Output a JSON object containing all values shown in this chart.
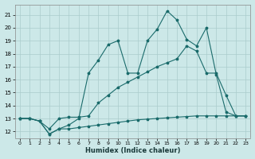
{
  "xlabel": "Humidex (Indice chaleur)",
  "background_color": "#cce8e8",
  "grid_color": "#aacccc",
  "line_color": "#1a6b6b",
  "xlim": [
    -0.5,
    23.5
  ],
  "ylim": [
    11.5,
    21.8
  ],
  "yticks": [
    12,
    13,
    14,
    15,
    16,
    17,
    18,
    19,
    20,
    21
  ],
  "xticks": [
    0,
    1,
    2,
    3,
    4,
    5,
    6,
    7,
    8,
    9,
    10,
    11,
    12,
    13,
    14,
    15,
    16,
    17,
    18,
    19,
    20,
    21,
    22,
    23
  ],
  "series1_y": [
    13.0,
    13.0,
    12.8,
    11.8,
    12.2,
    12.5,
    13.0,
    16.5,
    17.5,
    18.7,
    19.0,
    16.5,
    16.5,
    19.0,
    19.9,
    21.3,
    20.6,
    19.1,
    18.6,
    20.0,
    16.4,
    13.5,
    13.2,
    13.2
  ],
  "series2_y": [
    13.0,
    13.0,
    12.8,
    12.2,
    13.0,
    13.1,
    13.1,
    13.2,
    14.2,
    14.8,
    15.4,
    15.8,
    16.2,
    16.6,
    17.0,
    17.3,
    17.6,
    18.6,
    18.2,
    16.5,
    16.5,
    14.8,
    13.2,
    13.2
  ],
  "series3_y": [
    13.0,
    13.0,
    12.8,
    11.8,
    12.2,
    12.2,
    12.3,
    12.4,
    12.5,
    12.6,
    12.7,
    12.8,
    12.9,
    12.95,
    13.0,
    13.05,
    13.1,
    13.15,
    13.2,
    13.2,
    13.2,
    13.2,
    13.2,
    13.2
  ]
}
